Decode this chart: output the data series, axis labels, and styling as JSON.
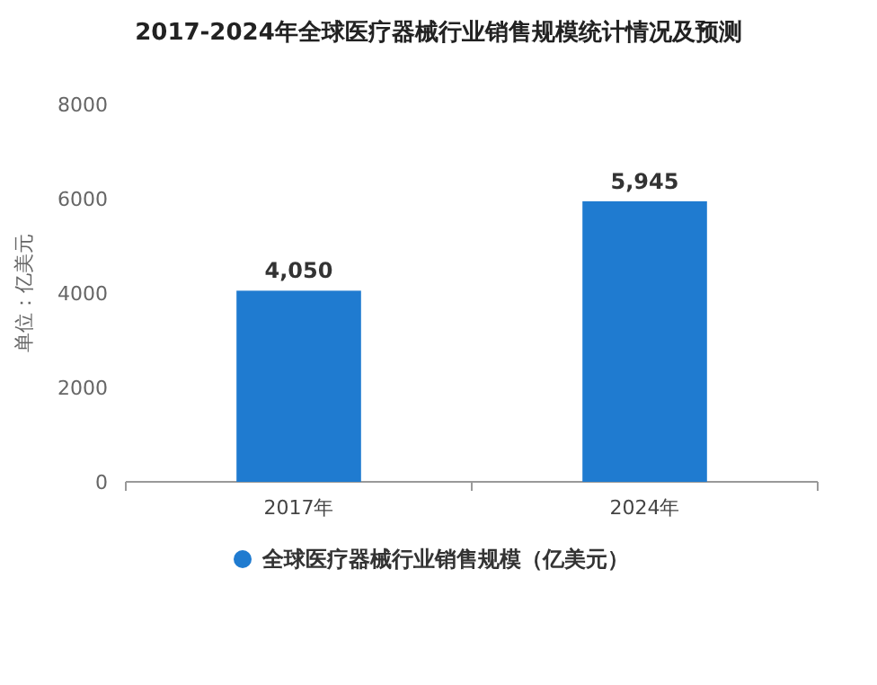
{
  "chart_data": {
    "type": "bar",
    "title": "2017-2024年全球医疗器械行业销售规模统计情况及预测",
    "ylabel": "单位：亿美元",
    "categories": [
      "2017年",
      "2024年"
    ],
    "series": [
      {
        "name": "全球医疗器械行业销售规模（亿美元）",
        "color": "#1f7bd0",
        "values": [
          4050,
          5945
        ],
        "value_labels": [
          "4,050",
          "5,945"
        ]
      }
    ],
    "ylim": [
      0,
      8000
    ],
    "yticks": [
      0,
      2000,
      4000,
      6000,
      8000
    ],
    "grid": false,
    "legend": "bottom"
  }
}
